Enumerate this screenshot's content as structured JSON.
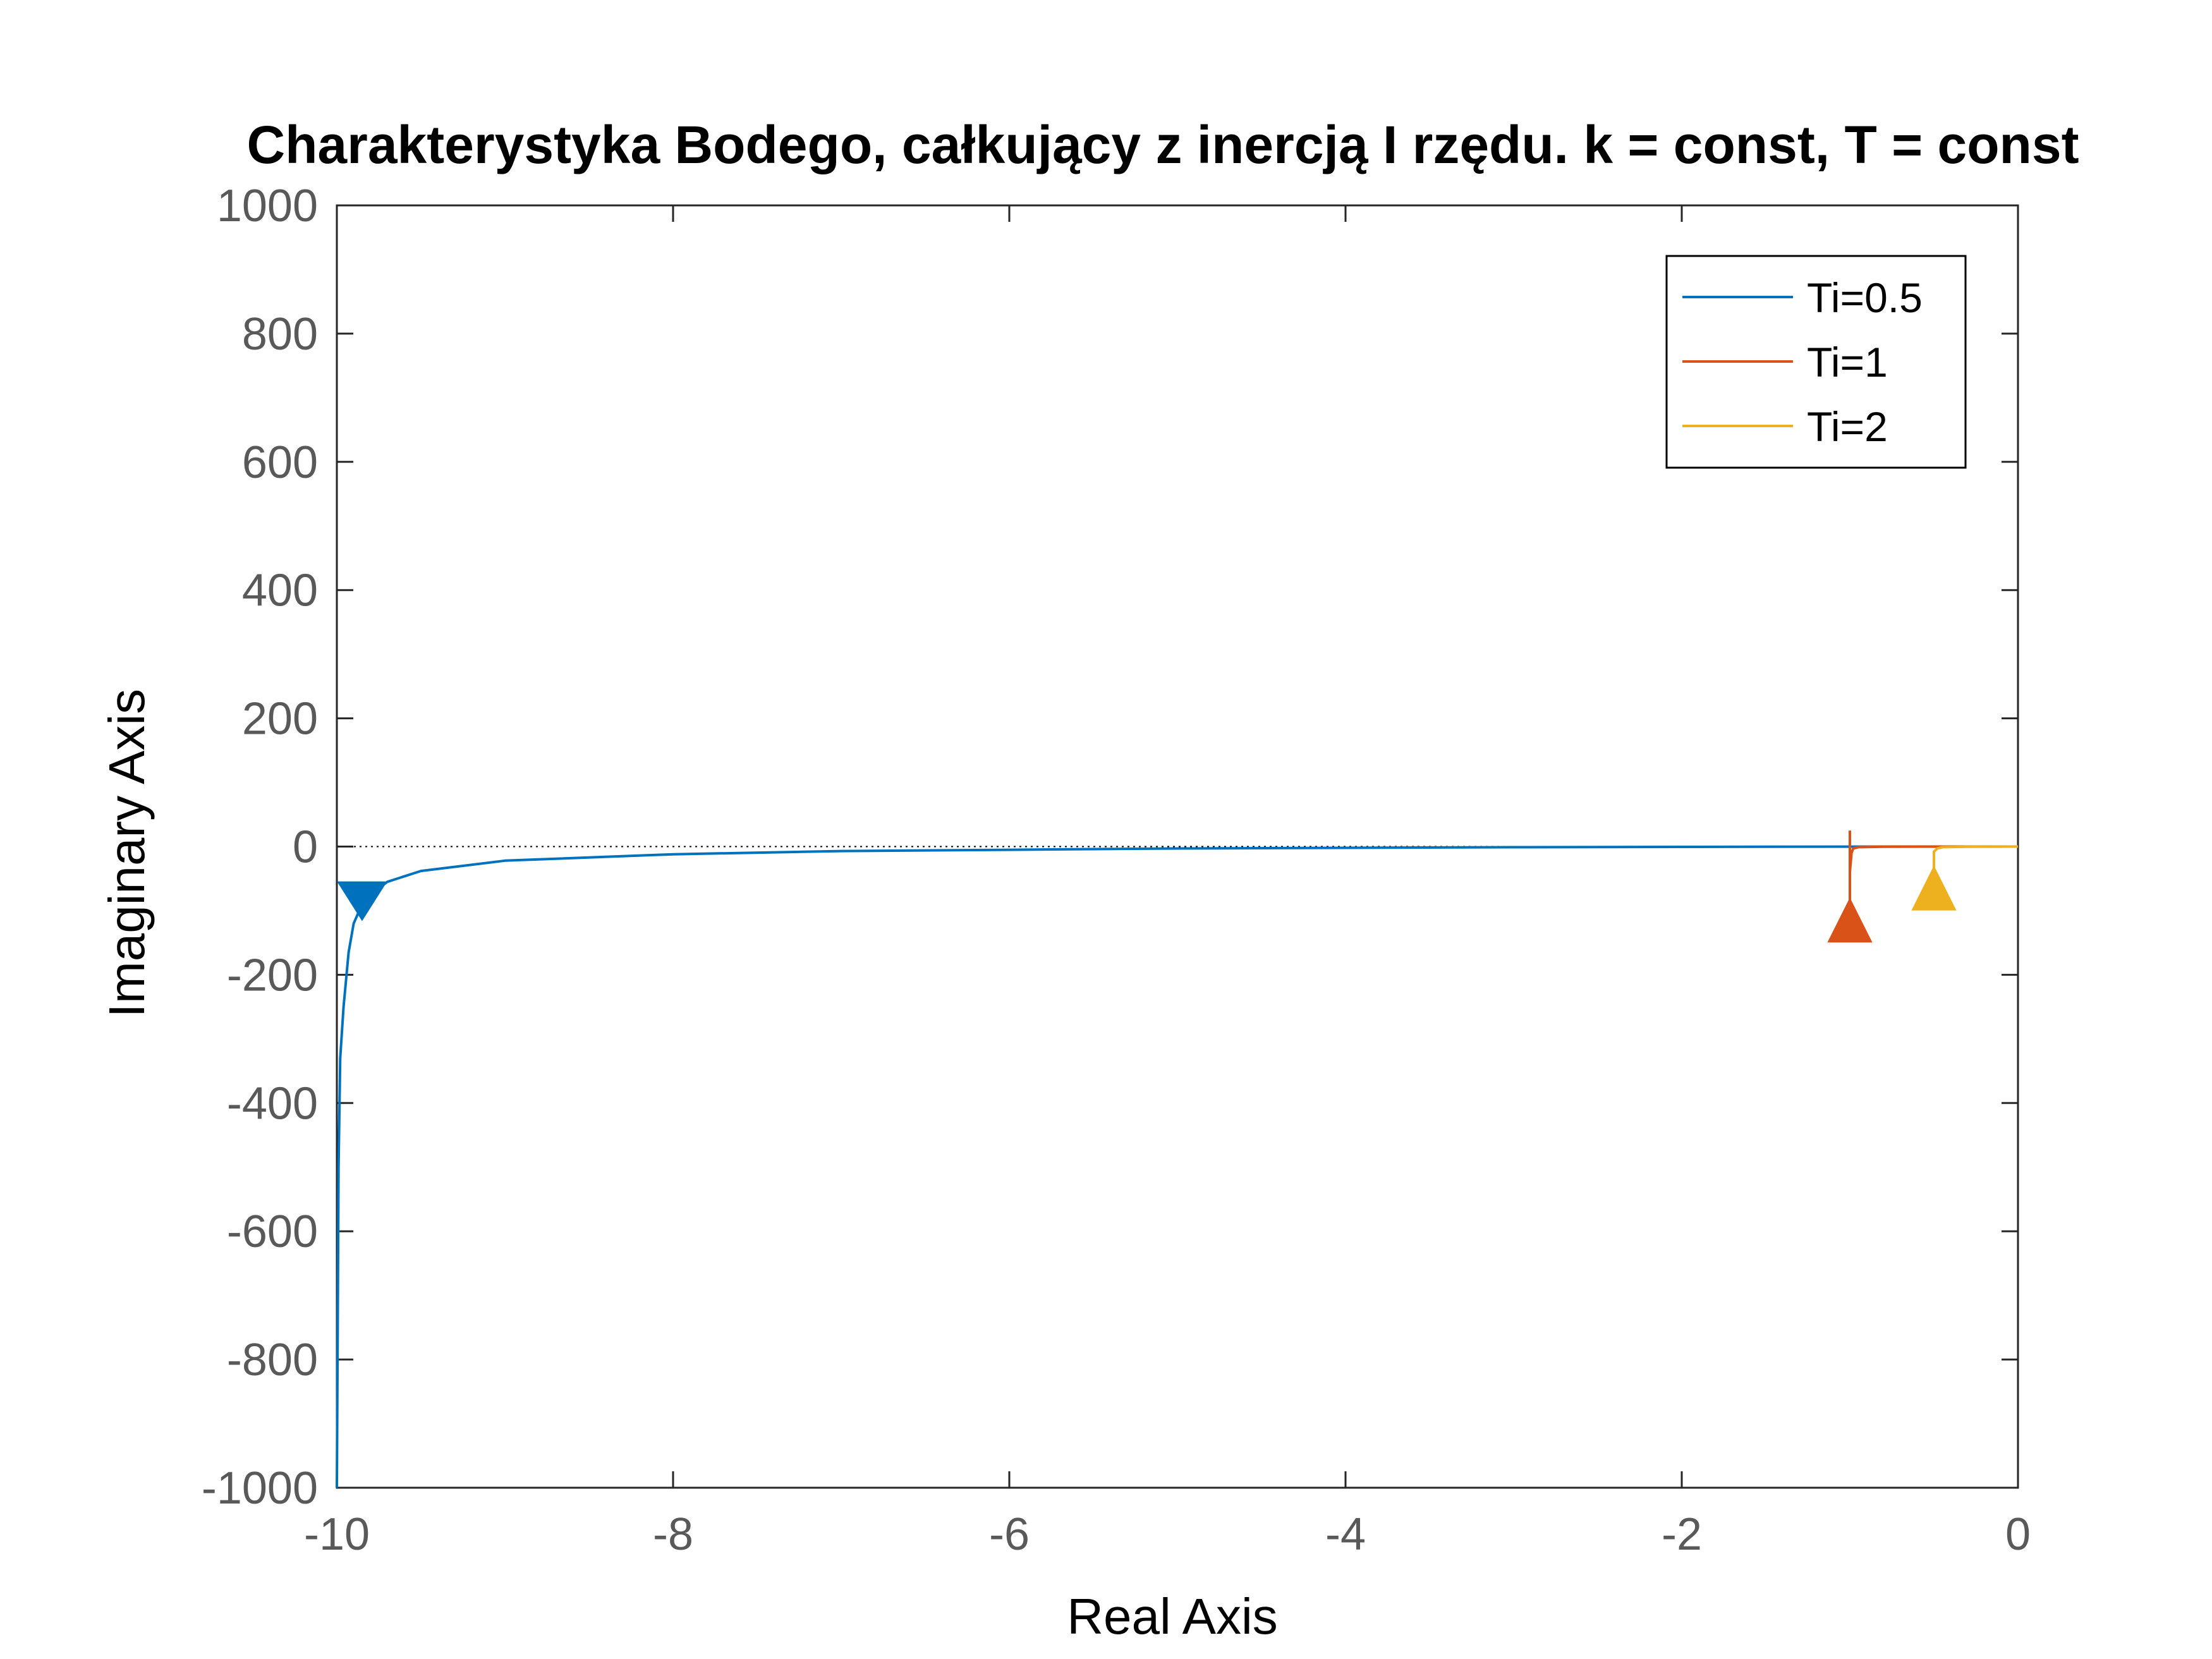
{
  "chart_data": {
    "type": "line",
    "title": "Charakterystyka Bodego, całkujący z inercją I rzędu. k = const, T = const",
    "xlabel": "Real Axis",
    "ylabel": "Imaginary Axis",
    "xlim": [
      -10,
      0
    ],
    "ylim": [
      -1000,
      1000
    ],
    "x_ticks": [
      -10,
      -8,
      -6,
      -4,
      -2,
      0
    ],
    "y_ticks": [
      -1000,
      -800,
      -600,
      -400,
      -200,
      0,
      200,
      400,
      600,
      800,
      1000
    ],
    "grid": false,
    "legend_position": "top-right",
    "zero_line": true,
    "series": [
      {
        "name": "Ti=0.5",
        "color": "#0072BD",
        "points": [
          [
            -10,
            -1000
          ],
          [
            -9.99,
            -500
          ],
          [
            -9.98,
            -330
          ],
          [
            -9.96,
            -250
          ],
          [
            -9.93,
            -165
          ],
          [
            -9.9,
            -120
          ],
          [
            -9.85,
            -90
          ],
          [
            -9.8,
            -75
          ],
          [
            -9.7,
            -55
          ],
          [
            -9.5,
            -38
          ],
          [
            -9.0,
            -22
          ],
          [
            -8.0,
            -12
          ],
          [
            -7.0,
            -7
          ],
          [
            -6.0,
            -5
          ],
          [
            -5.0,
            -3
          ],
          [
            -4.0,
            -2
          ],
          [
            -3.0,
            -1
          ],
          [
            -2.0,
            -0.5
          ],
          [
            -1.0,
            -0.1
          ],
          [
            0,
            0
          ]
        ],
        "arrow": [
          -9.85,
          -77
        ]
      },
      {
        "name": "Ti=1",
        "color": "#D95319",
        "points": [
          [
            -1.0,
            -125
          ],
          [
            -1.0,
            -40
          ],
          [
            -0.99,
            -10
          ],
          [
            -0.98,
            -3
          ],
          [
            -0.95,
            -1
          ],
          [
            -0.8,
            -0.3
          ],
          [
            -0.5,
            -0.1
          ],
          [
            0,
            0
          ]
        ],
        "spike": [
          [
            -1.0,
            -125
          ],
          [
            -1.0,
            25
          ]
        ],
        "arrow": [
          -1.0,
          -125
        ]
      },
      {
        "name": "Ti=2",
        "color": "#EDB120",
        "points": [
          [
            -0.5,
            -75
          ],
          [
            -0.5,
            -30
          ],
          [
            -0.5,
            -8
          ],
          [
            -0.48,
            -3
          ],
          [
            -0.45,
            -1
          ],
          [
            -0.3,
            -0.3
          ],
          [
            0,
            0
          ]
        ],
        "arrow": [
          -0.5,
          -75
        ]
      }
    ]
  }
}
